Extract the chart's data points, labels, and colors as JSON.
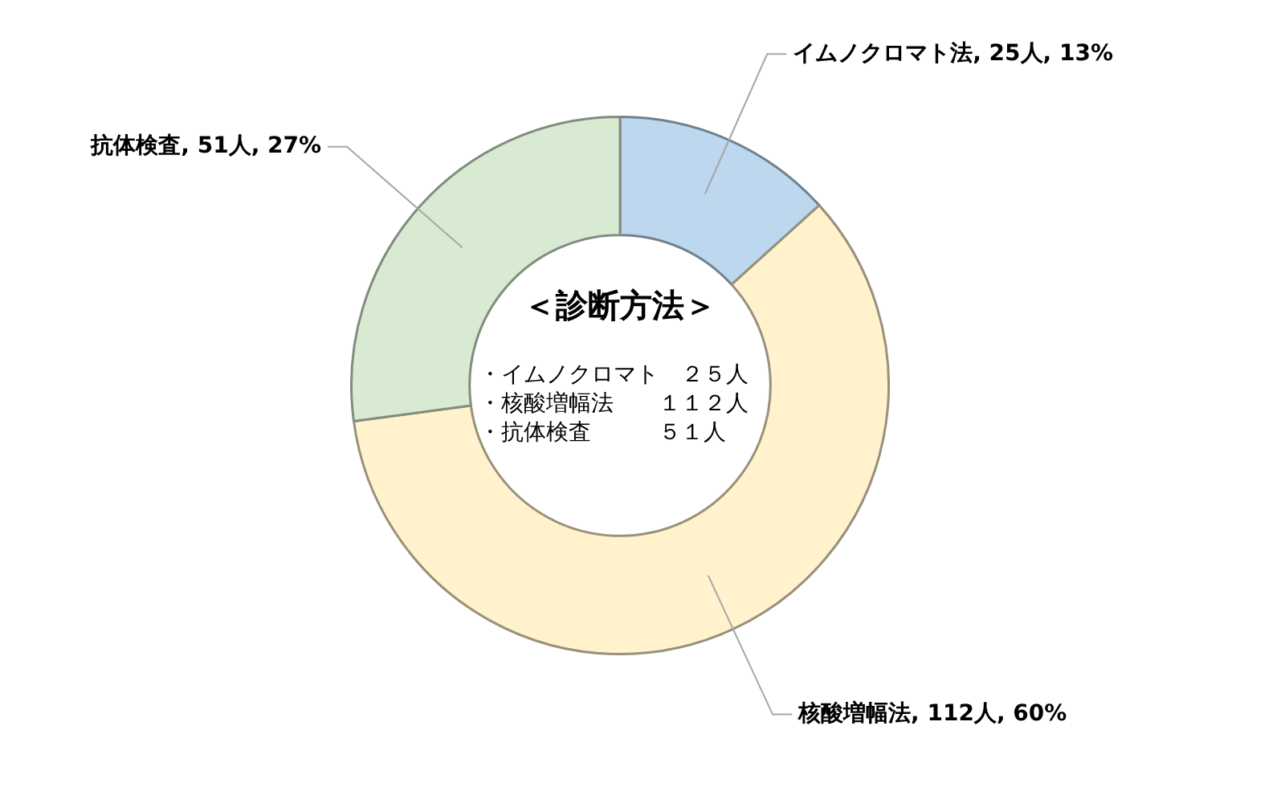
{
  "chart_data": {
    "type": "donut",
    "title": "＜診断方法＞",
    "categories": [
      "イムノクロマト法",
      "核酸増幅法",
      "抗体検査"
    ],
    "values": [
      25,
      112,
      51
    ],
    "colors": [
      "#bdd7ee",
      "#fff2cc",
      "#d9ead3"
    ],
    "value_labels": [
      "25人, 13%",
      "112人, 60%",
      "51人, 27%"
    ],
    "annotations": [
      "・イムノクロマト　２５人",
      "・核酸増幅法　　１１２人",
      "・抗体検査　　　５１人"
    ],
    "legend": false
  }
}
